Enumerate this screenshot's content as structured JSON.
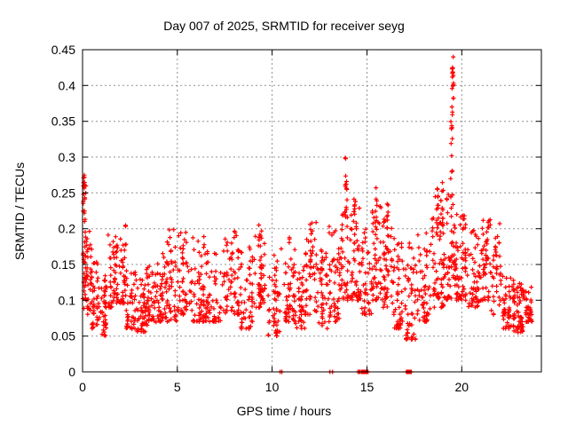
{
  "figure": {
    "title": "Day 007 of 2025, SRMTID for receiver seyg",
    "xlabel": "GPS time / hours",
    "ylabel": "SRMTID / TECUs"
  },
  "colors": {
    "background": "#ffffff",
    "axis": "#000000",
    "grid": "#909090",
    "marker": "#ff0000"
  },
  "chart_data": {
    "type": "scatter",
    "title": "Day 007 of 2025, SRMTID for receiver seyg",
    "xlabel": "GPS time / hours",
    "ylabel": "SRMTID / TECUs",
    "xlim": [
      0,
      24.2
    ],
    "ylim": [
      0,
      0.45
    ],
    "xticks": [
      {
        "v": 0,
        "label": "0"
      },
      {
        "v": 5,
        "label": "5"
      },
      {
        "v": 10,
        "label": "10"
      },
      {
        "v": 15,
        "label": "15"
      },
      {
        "v": 20,
        "label": "20"
      }
    ],
    "yticks": [
      {
        "v": 0,
        "label": "0"
      },
      {
        "v": 0.05,
        "label": "0.05"
      },
      {
        "v": 0.1,
        "label": "0.1"
      },
      {
        "v": 0.15,
        "label": "0.15"
      },
      {
        "v": 0.2,
        "label": "0.2"
      },
      {
        "v": 0.25,
        "label": "0.25"
      },
      {
        "v": 0.3,
        "label": "0.3"
      },
      {
        "v": 0.35,
        "label": "0.35"
      },
      {
        "v": 0.4,
        "label": "0.4"
      },
      {
        "v": 0.45,
        "label": "0.45"
      }
    ],
    "grid": true,
    "legend": "none",
    "marker": {
      "shape": "plus",
      "color": "#ff0000",
      "size": 5
    },
    "seed": 7,
    "density": 1.25,
    "bands_format": [
      "t0_hours",
      "t1_hours",
      "y_min_TECU",
      "y_max_TECU",
      "n_points"
    ],
    "series": [
      {
        "name": "SRMTID",
        "bands": [
          [
            0.0,
            0.2,
            0.1,
            0.27,
            22
          ],
          [
            0.05,
            0.5,
            0.08,
            0.21,
            30
          ],
          [
            0.5,
            0.9,
            0.06,
            0.155,
            30
          ],
          [
            0.9,
            1.35,
            0.05,
            0.135,
            32
          ],
          [
            1.35,
            1.75,
            0.09,
            0.195,
            30
          ],
          [
            1.75,
            2.3,
            0.095,
            0.205,
            38
          ],
          [
            2.3,
            2.85,
            0.06,
            0.145,
            34
          ],
          [
            2.85,
            3.35,
            0.055,
            0.13,
            38
          ],
          [
            3.35,
            3.9,
            0.065,
            0.15,
            38
          ],
          [
            3.9,
            4.35,
            0.07,
            0.18,
            32
          ],
          [
            4.35,
            5.0,
            0.07,
            0.2,
            42
          ],
          [
            5.0,
            5.75,
            0.08,
            0.2,
            45
          ],
          [
            5.75,
            6.5,
            0.07,
            0.19,
            45
          ],
          [
            6.5,
            7.3,
            0.07,
            0.18,
            42
          ],
          [
            7.3,
            8.35,
            0.08,
            0.2,
            55
          ],
          [
            8.35,
            9.0,
            0.06,
            0.175,
            40
          ],
          [
            9.0,
            9.75,
            0.09,
            0.2,
            42
          ],
          [
            9.75,
            10.45,
            0.05,
            0.165,
            40
          ],
          [
            10.45,
            11.2,
            0.07,
            0.19,
            45
          ],
          [
            11.2,
            11.75,
            0.06,
            0.155,
            32
          ],
          [
            11.75,
            12.45,
            0.08,
            0.21,
            42
          ],
          [
            12.45,
            12.95,
            0.06,
            0.175,
            32
          ],
          [
            12.95,
            13.55,
            0.07,
            0.21,
            38
          ],
          [
            13.55,
            14.05,
            0.1,
            0.225,
            32
          ],
          [
            14.05,
            14.65,
            0.1,
            0.235,
            38
          ],
          [
            14.65,
            15.25,
            0.08,
            0.2,
            32
          ],
          [
            15.25,
            15.75,
            0.1,
            0.24,
            35
          ],
          [
            15.75,
            16.35,
            0.09,
            0.23,
            42
          ],
          [
            16.35,
            16.95,
            0.06,
            0.19,
            38
          ],
          [
            16.95,
            17.6,
            0.045,
            0.18,
            40
          ],
          [
            17.6,
            18.35,
            0.07,
            0.2,
            42
          ],
          [
            18.35,
            19.05,
            0.09,
            0.26,
            48
          ],
          [
            19.05,
            19.45,
            0.1,
            0.27,
            32
          ],
          [
            19.45,
            19.7,
            0.12,
            0.235,
            18
          ],
          [
            19.7,
            20.35,
            0.1,
            0.225,
            42
          ],
          [
            20.35,
            21.05,
            0.09,
            0.2,
            42
          ],
          [
            21.05,
            21.55,
            0.1,
            0.215,
            30
          ],
          [
            21.55,
            22.05,
            0.08,
            0.205,
            28
          ],
          [
            22.05,
            22.75,
            0.06,
            0.135,
            45
          ],
          [
            22.75,
            23.35,
            0.055,
            0.125,
            45
          ],
          [
            23.35,
            23.7,
            0.07,
            0.125,
            25
          ]
        ],
        "spikes": [
          {
            "x": 0.08,
            "lo": 0.13,
            "hi": 0.275,
            "n": 16,
            "bias": "top"
          },
          {
            "x": 13.9,
            "lo": 0.21,
            "hi": 0.3,
            "n": 11,
            "bias": "uniform"
          },
          {
            "x": 14.35,
            "lo": 0.18,
            "hi": 0.255,
            "n": 7,
            "bias": "uniform"
          },
          {
            "x": 15.5,
            "lo": 0.19,
            "hi": 0.27,
            "n": 8,
            "bias": "uniform"
          },
          {
            "x": 16.1,
            "lo": 0.18,
            "hi": 0.235,
            "n": 6,
            "bias": "uniform"
          },
          {
            "x": 18.7,
            "lo": 0.19,
            "hi": 0.265,
            "n": 9,
            "bias": "uniform"
          },
          {
            "x": 19.0,
            "lo": 0.2,
            "hi": 0.28,
            "n": 6,
            "bias": "uniform"
          },
          {
            "x": 19.52,
            "lo": 0.33,
            "hi": 0.425,
            "n": 14,
            "bias": "top"
          },
          {
            "x": 19.47,
            "lo": 0.24,
            "hi": 0.35,
            "n": 9,
            "bias": "uniform"
          },
          {
            "x": 20.1,
            "lo": 0.16,
            "hi": 0.225,
            "n": 6,
            "bias": "uniform"
          },
          {
            "x": 21.3,
            "lo": 0.15,
            "hi": 0.21,
            "n": 6,
            "bias": "uniform"
          }
        ],
        "zero_clusters": [
          [
            10.42,
            10.52,
            2
          ],
          [
            13.05,
            13.18,
            2
          ],
          [
            14.52,
            14.78,
            5
          ],
          [
            14.8,
            15.06,
            12
          ],
          [
            17.08,
            17.35,
            12
          ]
        ],
        "extra_points": [
          [
            19.55,
            0.44
          ],
          [
            0.1,
            0.272
          ],
          [
            13.88,
            0.298
          ],
          [
            12.1,
            0.208
          ],
          [
            9.3,
            0.205
          ],
          [
            22.0,
            0.207
          ]
        ]
      }
    ]
  }
}
